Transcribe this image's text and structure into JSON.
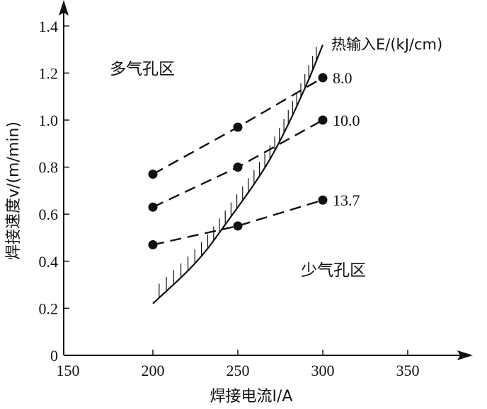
{
  "chart_data": {
    "type": "line",
    "title": "",
    "xlabel": "焊接电流I/A",
    "ylabel": "焊接速度v/(m/min)",
    "xlim": [
      150,
      380
    ],
    "ylim": [
      0,
      1.45
    ],
    "xticks": [
      "150",
      "200",
      "250",
      "300",
      "350"
    ],
    "yticks": [
      "0",
      "0.2",
      "0.4",
      "0.6",
      "0.8",
      "1.0",
      "1.2",
      "1.4"
    ],
    "legend_title": "热输入E/(kJ/cm)",
    "series": [
      {
        "name": "8.0",
        "style": "dashed",
        "x": [
          200,
          250,
          300
        ],
        "y": [
          0.77,
          0.97,
          1.18
        ]
      },
      {
        "name": "10.0",
        "style": "dashed",
        "x": [
          200,
          250,
          300
        ],
        "y": [
          0.63,
          0.8,
          1.0
        ]
      },
      {
        "name": "13.7",
        "style": "dashed",
        "x": [
          200,
          250,
          300
        ],
        "y": [
          0.47,
          0.55,
          0.66
        ]
      }
    ],
    "boundary_curve": {
      "name": "porosity boundary",
      "x": [
        200,
        227,
        243,
        263,
        275,
        290,
        300
      ],
      "y": [
        0.22,
        0.4,
        0.56,
        0.76,
        0.91,
        1.14,
        1.32
      ]
    },
    "annotations": {
      "upper_region": "多气孔区",
      "lower_region": "少气孔区"
    },
    "grid": false
  }
}
